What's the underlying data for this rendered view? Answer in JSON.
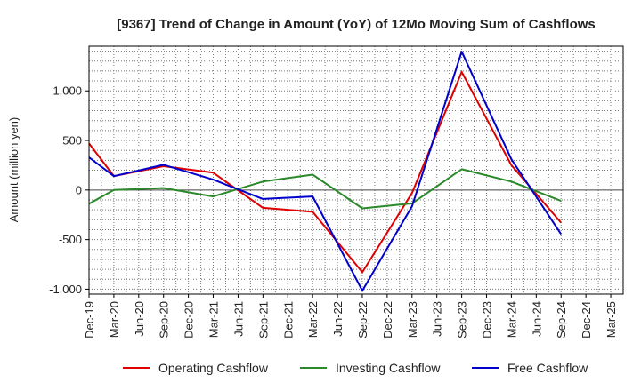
{
  "chart_data": {
    "type": "line",
    "title": "[9367]  Trend of Change in Amount (YoY) of 12Mo Moving Sum of Cashflows",
    "xlabel": "",
    "ylabel": "Amount (million yen)",
    "ylim": [
      -1050,
      1450
    ],
    "yticks": [
      -1000,
      -500,
      0,
      500,
      1000
    ],
    "ytick_labels": [
      "-1,000",
      "-500",
      "0",
      "500",
      "1,000"
    ],
    "categories": [
      "Dec-19",
      "Mar-20",
      "Jun-20",
      "Sep-20",
      "Dec-20",
      "Mar-21",
      "Jun-21",
      "Sep-21",
      "Dec-21",
      "Mar-22",
      "Jun-22",
      "Sep-22",
      "Dec-22",
      "Mar-23",
      "Jun-23",
      "Sep-23",
      "Dec-23",
      "Mar-24",
      "Jun-24",
      "Sep-24",
      "Dec-24",
      "Mar-25"
    ],
    "grid": true,
    "legend_position": "bottom",
    "series": [
      {
        "name": "Operating Cashflow",
        "color": "#e00000",
        "values": [
          470,
          140,
          null,
          240,
          null,
          175,
          null,
          -180,
          null,
          -220,
          null,
          -830,
          null,
          -30,
          null,
          1190,
          null,
          250,
          null,
          -330,
          null,
          null
        ]
      },
      {
        "name": "Investing Cashflow",
        "color": "#2a8a2a",
        "values": [
          -140,
          0,
          null,
          20,
          null,
          -65,
          null,
          85,
          null,
          155,
          null,
          -185,
          null,
          -135,
          null,
          210,
          null,
          85,
          null,
          -110,
          null,
          null
        ]
      },
      {
        "name": "Free Cashflow",
        "color": "#0000cc",
        "values": [
          330,
          140,
          null,
          255,
          null,
          105,
          null,
          -90,
          null,
          -65,
          null,
          -1015,
          null,
          -165,
          null,
          1395,
          null,
          310,
          null,
          -445,
          null,
          null
        ]
      }
    ]
  }
}
